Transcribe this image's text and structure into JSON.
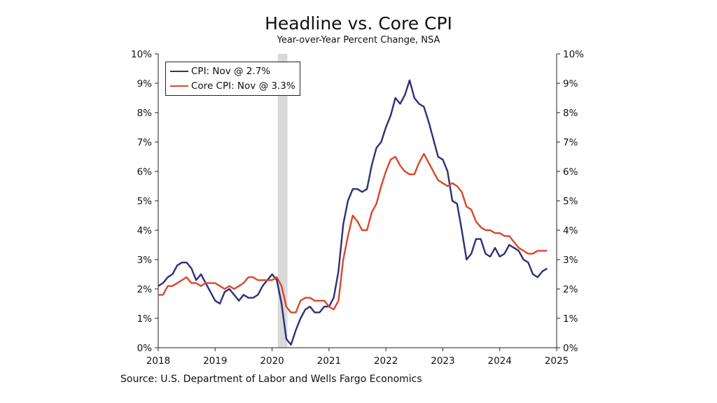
{
  "chart_data": {
    "type": "line",
    "title": "Headline vs. Core CPI",
    "subtitle": "Year-over-Year Percent Change, NSA",
    "source": "Source: U.S. Department of Labor and Wells Fargo Economics",
    "x_ticks": [
      "2018",
      "2019",
      "2020",
      "2021",
      "2022",
      "2023",
      "2024",
      "2025"
    ],
    "y_ticks_left": [
      "0%",
      "1%",
      "2%",
      "3%",
      "4%",
      "5%",
      "6%",
      "7%",
      "8%",
      "9%",
      "10%"
    ],
    "y_ticks_right": [
      "0%",
      "1%",
      "2%",
      "3%",
      "4%",
      "5%",
      "6%",
      "7%",
      "8%",
      "9%",
      "10%"
    ],
    "xlim": [
      2018.0,
      2025.0
    ],
    "ylim": [
      0,
      10
    ],
    "recession_shading": [
      2020.1,
      2020.27
    ],
    "legend_position": "top-left",
    "x": [
      2018.0,
      2018.083,
      2018.167,
      2018.25,
      2018.333,
      2018.417,
      2018.5,
      2018.583,
      2018.667,
      2018.75,
      2018.833,
      2018.917,
      2019.0,
      2019.083,
      2019.167,
      2019.25,
      2019.333,
      2019.417,
      2019.5,
      2019.583,
      2019.667,
      2019.75,
      2019.833,
      2019.917,
      2020.0,
      2020.083,
      2020.167,
      2020.25,
      2020.333,
      2020.417,
      2020.5,
      2020.583,
      2020.667,
      2020.75,
      2020.833,
      2020.917,
      2021.0,
      2021.083,
      2021.167,
      2021.25,
      2021.333,
      2021.417,
      2021.5,
      2021.583,
      2021.667,
      2021.75,
      2021.833,
      2021.917,
      2022.0,
      2022.083,
      2022.167,
      2022.25,
      2022.333,
      2022.417,
      2022.5,
      2022.583,
      2022.667,
      2022.75,
      2022.833,
      2022.917,
      2023.0,
      2023.083,
      2023.167,
      2023.25,
      2023.333,
      2023.417,
      2023.5,
      2023.583,
      2023.667,
      2023.75,
      2023.833,
      2023.917,
      2024.0,
      2024.083,
      2024.167,
      2024.25,
      2024.333,
      2024.417,
      2024.5,
      2024.583,
      2024.667,
      2024.75,
      2024.833
    ],
    "series": [
      {
        "name": "CPI: Nov @ 2.7%",
        "color": "#2e2f7a",
        "values": [
          2.1,
          2.2,
          2.4,
          2.5,
          2.8,
          2.9,
          2.9,
          2.7,
          2.3,
          2.5,
          2.2,
          1.9,
          1.6,
          1.5,
          1.9,
          2.0,
          1.8,
          1.6,
          1.8,
          1.7,
          1.7,
          1.8,
          2.1,
          2.3,
          2.5,
          2.3,
          1.5,
          0.3,
          0.1,
          0.6,
          1.0,
          1.3,
          1.4,
          1.2,
          1.2,
          1.4,
          1.4,
          1.7,
          2.6,
          4.2,
          5.0,
          5.4,
          5.4,
          5.3,
          5.4,
          6.2,
          6.8,
          7.0,
          7.5,
          7.9,
          8.5,
          8.3,
          8.6,
          9.1,
          8.5,
          8.3,
          8.2,
          7.7,
          7.1,
          6.5,
          6.4,
          6.0,
          5.0,
          4.9,
          4.0,
          3.0,
          3.2,
          3.7,
          3.7,
          3.2,
          3.1,
          3.4,
          3.1,
          3.2,
          3.5,
          3.4,
          3.3,
          3.0,
          2.9,
          2.5,
          2.4,
          2.6,
          2.7
        ]
      },
      {
        "name": "Core CPI: Nov @ 3.3%",
        "color": "#d9472b",
        "values": [
          1.8,
          1.8,
          2.1,
          2.1,
          2.2,
          2.3,
          2.4,
          2.2,
          2.2,
          2.1,
          2.2,
          2.2,
          2.2,
          2.1,
          2.0,
          2.1,
          2.0,
          2.1,
          2.2,
          2.4,
          2.4,
          2.3,
          2.3,
          2.3,
          2.3,
          2.4,
          2.1,
          1.4,
          1.2,
          1.2,
          1.6,
          1.7,
          1.7,
          1.6,
          1.6,
          1.6,
          1.4,
          1.3,
          1.6,
          3.0,
          3.8,
          4.5,
          4.3,
          4.0,
          4.0,
          4.6,
          4.9,
          5.5,
          6.0,
          6.4,
          6.5,
          6.2,
          6.0,
          5.9,
          5.9,
          6.3,
          6.6,
          6.3,
          6.0,
          5.7,
          5.6,
          5.5,
          5.6,
          5.5,
          5.3,
          4.8,
          4.7,
          4.3,
          4.1,
          4.0,
          4.0,
          3.9,
          3.9,
          3.8,
          3.8,
          3.6,
          3.4,
          3.3,
          3.2,
          3.2,
          3.3,
          3.3,
          3.3
        ]
      }
    ]
  }
}
